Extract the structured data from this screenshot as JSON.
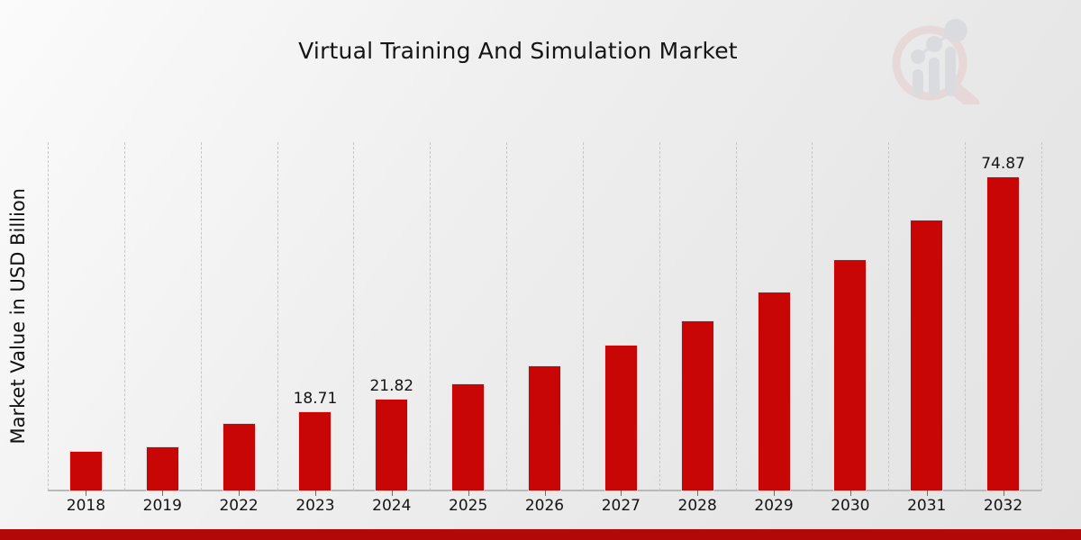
{
  "header": {
    "title": "Virtual Training And Simulation Market"
  },
  "chart_data": {
    "type": "bar",
    "title": "Virtual Training And Simulation Market",
    "xlabel": "",
    "ylabel": "Market Value in USD Billion",
    "categories": [
      "2018",
      "2019",
      "2022",
      "2023",
      "2024",
      "2025",
      "2026",
      "2027",
      "2028",
      "2029",
      "2030",
      "2031",
      "2032"
    ],
    "values": [
      9.2,
      10.3,
      16.0,
      18.71,
      21.82,
      25.4,
      29.7,
      34.7,
      40.4,
      47.3,
      55.0,
      64.5,
      74.87
    ],
    "bar_labels": [
      "",
      "",
      "",
      "18.71",
      "21.82",
      "",
      "",
      "",
      "",
      "",
      "",
      "",
      "74.87"
    ],
    "ylim": [
      0,
      83.2
    ],
    "grid": "vertical-dashed",
    "legend_position": "none",
    "bar_color": "#c90606"
  },
  "colors": {
    "bar": "#c90606",
    "footer_band": "#b30808",
    "gridline": "#c6c6c6",
    "axis": "#b9b9b9",
    "logo_ring": "#e7cccc",
    "logo_bars": "#cdd1d6"
  },
  "logo": {
    "name": "magnifier-bar-chart-logo"
  }
}
